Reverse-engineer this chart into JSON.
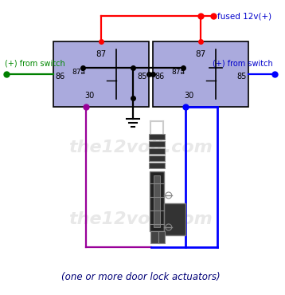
{
  "bg_color": "#ffffff",
  "relay_fill": "#aaaadd",
  "relay_edge": "#000000",
  "title_text": "(one or more door lock actuators)",
  "fused_label": "fused 12v(+)",
  "left_switch_label": "(+) from switch",
  "right_switch_label": "(+) from switch",
  "colors": {
    "red": "#ff0000",
    "blue": "#0000ff",
    "green": "#008000",
    "purple": "#990099",
    "black": "#000000"
  },
  "figsize": [
    3.58,
    3.7
  ],
  "dpi": 100
}
